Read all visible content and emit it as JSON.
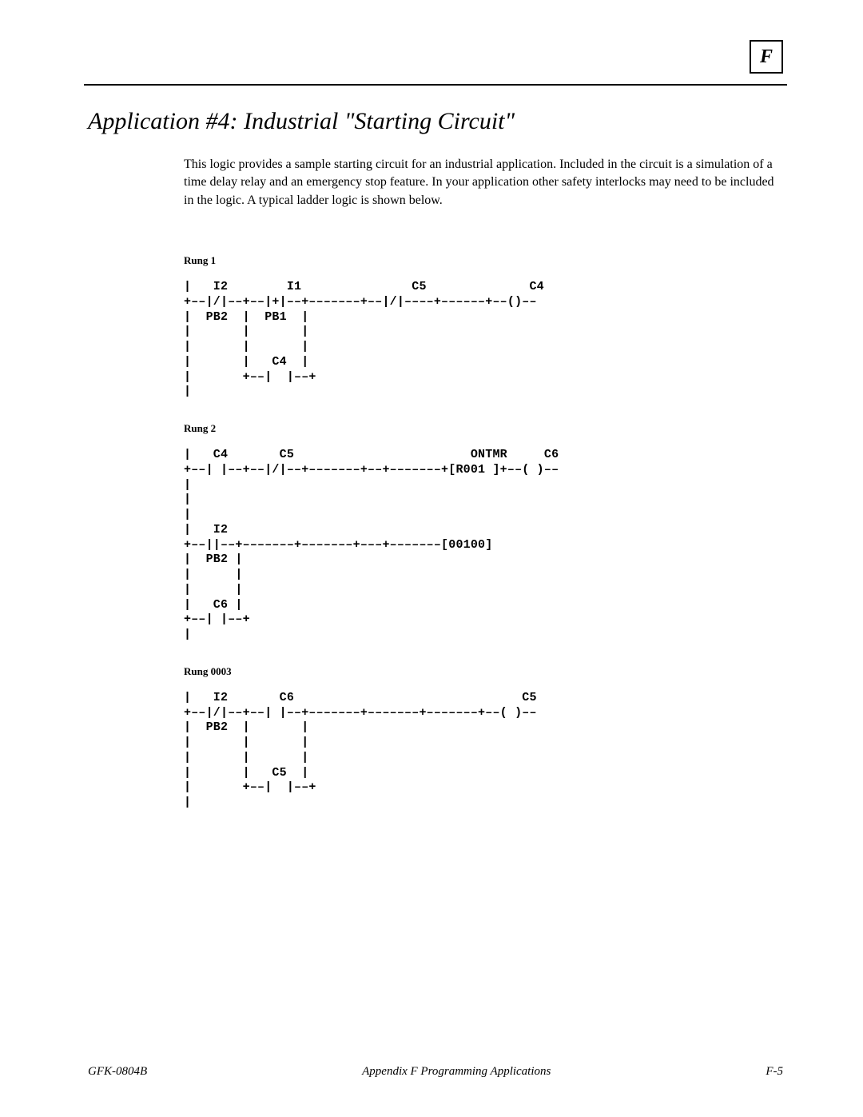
{
  "header": {
    "letter": "F"
  },
  "title": "Application #4: Industrial \"Starting Circuit\"",
  "paragraph": "This logic provides a sample starting circuit for an industrial application.  Included in the circuit  is a simulation of a time delay relay and an emergency stop feature.   In your application other safety interlocks may need to be included in the logic.  A typical ladder logic is shown below.",
  "rungs": [
    {
      "label": "Rung 1",
      "code": "|   I2        I1               C5              C4\n+––|/|––+––|+|––+–––––––+––|/|––––+––––––+––()––\n|  PB2  |  PB1  |\n|       |       |\n|       |       |\n|       |   C4  |\n|       +––|  |––+\n|"
    },
    {
      "label": "Rung 2",
      "code": "|   C4       C5                        ONTMR     C6\n+––| |––+––|/|––+–––––––+––+–––––––+[R001 ]+––( )––\n|\n|\n|\n|   I2\n+––||––+–––––––+–––––––+–––+–––––––[00100]\n|  PB2 |\n|      |\n|      |\n|   C6 |\n+––| |––+\n|"
    },
    {
      "label": "Rung 0003",
      "code": "|   I2       C6                               C5\n+––|/|––+––| |––+–––––––+–––––––+–––––––+––( )––\n|  PB2  |       |\n|       |       |\n|       |       |\n|       |   C5  |\n|       +––|  |––+\n|"
    }
  ],
  "footer": {
    "left": "GFK-0804B",
    "center": "Appendix F Programming Applications",
    "right": "F-5"
  },
  "colors": {
    "text": "#000000",
    "background": "#ffffff"
  }
}
